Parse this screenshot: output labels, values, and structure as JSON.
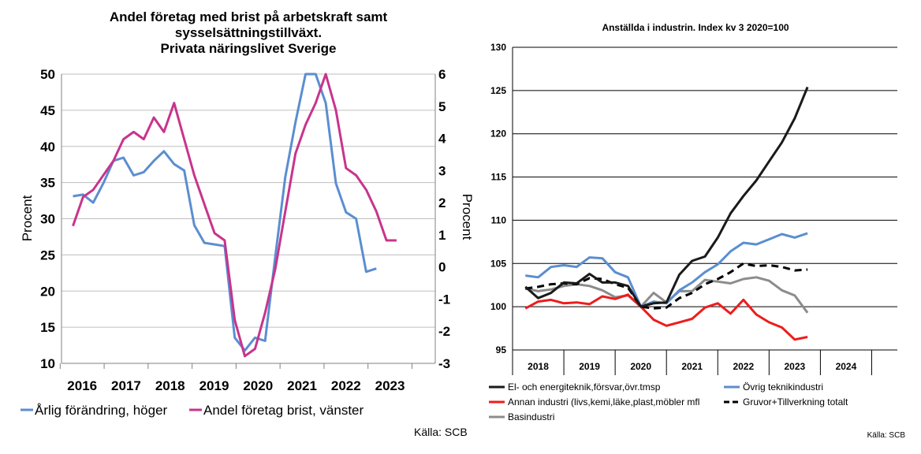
{
  "chart_data": [
    {
      "type": "line",
      "title": [
        "Andel företag med brist på arbetskraft samt",
        "sysselsättningstillväxt.",
        "Privata näringslivet Sverige"
      ],
      "ylabel": "Procent",
      "y2label": "Procent",
      "ylim": [
        10,
        50
      ],
      "y2lim": [
        -3,
        6
      ],
      "yticks": [
        "10",
        "15",
        "20",
        "25",
        "30",
        "35",
        "40",
        "45",
        "50"
      ],
      "y2ticks": [
        "-3",
        "-2",
        "-1",
        "0",
        "1",
        "2",
        "3",
        "4",
        "5",
        "6"
      ],
      "xlim": [
        2015.6,
        2024.1
      ],
      "xticks": [
        "2016",
        "2017",
        "2018",
        "2019",
        "2020",
        "2021",
        "2022",
        "2023"
      ],
      "grid": true,
      "legend_position": "bottom",
      "source": "Källa: SCB",
      "series": [
        {
          "name": "Årlig förändring, höger",
          "axis": "right",
          "color": "#5b8ed0",
          "x": [
            2015.86,
            2016.09,
            2016.32,
            2016.55,
            2016.78,
            2017.01,
            2017.24,
            2017.47,
            2017.7,
            2017.93,
            2018.16,
            2018.39,
            2018.62,
            2018.85,
            2019.08,
            2019.31,
            2019.54,
            2019.77,
            2020.0,
            2020.23,
            2020.46,
            2020.69,
            2020.92,
            2021.15,
            2021.38,
            2021.61,
            2021.84,
            2022.07,
            2022.3,
            2022.53,
            2022.76,
            2022.99,
            2023.22,
            2023.45
          ],
          "y": [
            2.2,
            2.25,
            2.0,
            2.6,
            3.3,
            3.4,
            2.85,
            2.95,
            3.3,
            3.6,
            3.2,
            3.0,
            1.3,
            0.75,
            0.7,
            0.65,
            -2.2,
            -2.6,
            -2.2,
            -2.3,
            0.3,
            2.8,
            4.5,
            6.0,
            6.0,
            5.1,
            2.6,
            1.7,
            1.5,
            -0.15,
            -0.05,
            null,
            null,
            null
          ]
        },
        {
          "name": "Andel företag brist, vänster",
          "axis": "left",
          "color": "#c8348c",
          "x": [
            2015.86,
            2016.09,
            2016.32,
            2016.55,
            2016.78,
            2017.01,
            2017.24,
            2017.47,
            2017.7,
            2017.93,
            2018.16,
            2018.39,
            2018.62,
            2018.85,
            2019.08,
            2019.31,
            2019.54,
            2019.77,
            2020.0,
            2020.23,
            2020.46,
            2020.69,
            2020.92,
            2021.15,
            2021.38,
            2021.61,
            2021.84,
            2022.07,
            2022.3,
            2022.53,
            2022.76,
            2022.99,
            2023.22,
            2023.45
          ],
          "y": [
            29,
            33,
            34,
            36,
            38,
            41,
            42,
            41,
            44,
            42,
            46,
            41,
            36,
            32,
            28,
            27,
            16,
            11,
            12,
            17,
            23,
            31,
            39,
            43,
            46,
            50,
            45,
            37,
            36,
            34,
            31,
            27,
            27,
            null
          ]
        }
      ]
    },
    {
      "type": "line",
      "title": "Anställda i industrin. Index kv 3 2020=100",
      "ylim": [
        95,
        130
      ],
      "yticks": [
        "95",
        "100",
        "105",
        "110",
        "115",
        "120",
        "125",
        "130"
      ],
      "xlim": [
        2017.5,
        2025
      ],
      "xticks": [
        "2018",
        "2019",
        "2020",
        "2021",
        "2022",
        "2023",
        "2024"
      ],
      "grid": true,
      "legend_position": "bottom",
      "source": "Källa: SCB",
      "series": [
        {
          "name": "El- och energiteknik,försvar,övr.tmsp",
          "color": "#1a1a1a",
          "dash": false,
          "x": [
            2017.75,
            2018.0,
            2018.25,
            2018.5,
            2018.75,
            2019.0,
            2019.25,
            2019.5,
            2019.75,
            2020.0,
            2020.25,
            2020.5,
            2020.75,
            2021.0,
            2021.25,
            2021.5,
            2021.75,
            2022.0,
            2022.25,
            2022.5,
            2022.75,
            2023.0,
            2023.25,
            2023.5
          ],
          "y": [
            102.3,
            101.0,
            101.6,
            102.8,
            102.7,
            103.8,
            102.8,
            102.8,
            102.4,
            100.0,
            100.4,
            100.5,
            103.7,
            105.3,
            105.8,
            108.0,
            110.8,
            112.8,
            114.6,
            116.8,
            119.0,
            121.8,
            125.4,
            null
          ]
        },
        {
          "name": "Övrig teknikindustri",
          "color": "#5b8ed0",
          "dash": false,
          "x": [
            2017.75,
            2018.0,
            2018.25,
            2018.5,
            2018.75,
            2019.0,
            2019.25,
            2019.5,
            2019.75,
            2020.0,
            2020.25,
            2020.5,
            2020.75,
            2021.0,
            2021.25,
            2021.5,
            2021.75,
            2022.0,
            2022.25,
            2022.5,
            2022.75,
            2023.0,
            2023.25,
            2023.5
          ],
          "y": [
            103.6,
            103.4,
            104.6,
            104.8,
            104.6,
            105.7,
            105.6,
            104.0,
            103.4,
            100.0,
            100.6,
            100.4,
            101.9,
            102.8,
            104.0,
            104.9,
            106.4,
            107.4,
            107.2,
            107.8,
            108.4,
            108.0,
            108.5,
            null
          ]
        },
        {
          "name": "Annan industri (livs,kemi,läke,plast,möbler mfl",
          "color": "#ee1c1c",
          "dash": false,
          "x": [
            2017.75,
            2018.0,
            2018.25,
            2018.5,
            2018.75,
            2019.0,
            2019.25,
            2019.5,
            2019.75,
            2020.0,
            2020.25,
            2020.5,
            2020.75,
            2021.0,
            2021.25,
            2021.5,
            2021.75,
            2022.0,
            2022.25,
            2022.5,
            2022.75,
            2023.0,
            2023.25,
            2023.5
          ],
          "y": [
            99.8,
            100.6,
            100.8,
            100.4,
            100.5,
            100.3,
            101.2,
            100.9,
            101.4,
            100.0,
            98.5,
            97.8,
            98.2,
            98.6,
            99.9,
            100.4,
            99.2,
            100.8,
            99.1,
            98.2,
            97.6,
            96.2,
            96.5,
            null
          ]
        },
        {
          "name": "Gruvor+Tillverkning totalt",
          "color": "#000000",
          "dash": true,
          "x": [
            2017.75,
            2018.0,
            2018.25,
            2018.5,
            2018.75,
            2019.0,
            2019.25,
            2019.5,
            2019.75,
            2020.0,
            2020.25,
            2020.5,
            2020.75,
            2021.0,
            2021.25,
            2021.5,
            2021.75,
            2022.0,
            2022.25,
            2022.5,
            2022.75,
            2023.0,
            2023.25,
            2023.5
          ],
          "y": [
            102.1,
            102.3,
            102.6,
            102.7,
            102.6,
            103.3,
            103.2,
            102.6,
            102.2,
            100.0,
            99.8,
            99.9,
            101.0,
            101.6,
            102.6,
            103.2,
            104.0,
            105.0,
            104.7,
            104.8,
            104.6,
            104.2,
            104.3,
            null
          ]
        },
        {
          "name": "Basindustri",
          "color": "#8c8c8c",
          "dash": false,
          "x": [
            2017.75,
            2018.0,
            2018.25,
            2018.5,
            2018.75,
            2019.0,
            2019.25,
            2019.5,
            2019.75,
            2020.0,
            2020.25,
            2020.5,
            2020.75,
            2021.0,
            2021.25,
            2021.5,
            2021.75,
            2022.0,
            2022.25,
            2022.5,
            2022.75,
            2023.0,
            2023.25,
            2023.5
          ],
          "y": [
            102.1,
            101.8,
            102.0,
            102.4,
            102.6,
            102.4,
            101.9,
            101.1,
            101.3,
            100.0,
            101.6,
            100.5,
            101.8,
            101.8,
            103.1,
            102.9,
            102.7,
            103.2,
            103.4,
            103.0,
            101.9,
            101.3,
            99.3,
            null
          ]
        }
      ]
    }
  ]
}
